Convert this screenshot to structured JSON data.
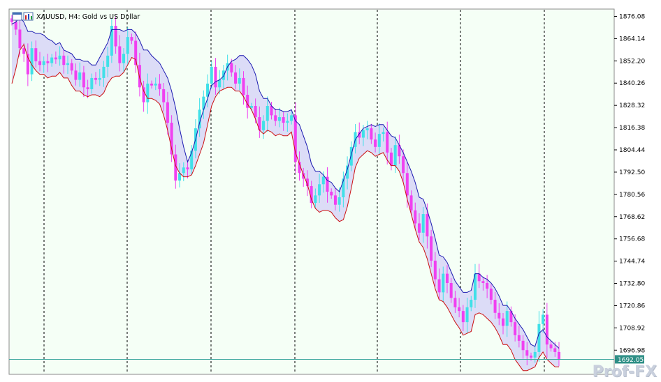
{
  "header": {
    "symbol_title": "XAUUSD, H4:  Gold vs US Dollar"
  },
  "watermark": "Prof-FX",
  "colors": {
    "background": "#f5fff6",
    "bull_candle": "#40e0e8",
    "bear_candle": "#f040f0",
    "upper_band": "#1a1ab0",
    "lower_band": "#cc1010",
    "band_fill": "#dcdcf7",
    "price_line": "#3aa69c",
    "price_label_bg": "#2e8f86"
  },
  "chart_data": {
    "type": "candlestick",
    "symbol": "XAUUSD",
    "timeframe": "H4",
    "ylim": [
      1684,
      1880
    ],
    "y_ticks": [
      "1876.08",
      "1864.14",
      "1852.20",
      "1840.26",
      "1828.32",
      "1816.38",
      "1804.44",
      "1792.50",
      "1780.56",
      "1768.62",
      "1756.68",
      "1744.74",
      "1732.80",
      "1720.86",
      "1708.92",
      "1696.98"
    ],
    "current_price": "1692.05",
    "grid": "vertical dashed period separators",
    "closes": [
      1873,
      1869,
      1859,
      1856,
      1845,
      1859,
      1852,
      1850,
      1852,
      1851,
      1854,
      1853,
      1855,
      1850,
      1851,
      1847,
      1842,
      1846,
      1838,
      1837,
      1843,
      1842,
      1843,
      1849,
      1855,
      1871,
      1860,
      1851,
      1856,
      1865,
      1863,
      1850,
      1838,
      1830,
      1840,
      1839,
      1840,
      1837,
      1830,
      1819,
      1802,
      1788,
      1792,
      1795,
      1794,
      1804,
      1816,
      1826,
      1833,
      1840,
      1849,
      1838,
      1842,
      1847,
      1851,
      1846,
      1840,
      1843,
      1834,
      1827,
      1828,
      1822,
      1815,
      1820,
      1828,
      1823,
      1820,
      1822,
      1819,
      1820,
      1823,
      1798,
      1792,
      1789,
      1785,
      1776,
      1780,
      1786,
      1790,
      1782,
      1780,
      1775,
      1779,
      1789,
      1796,
      1806,
      1814,
      1811,
      1815,
      1816,
      1810,
      1806,
      1813,
      1814,
      1803,
      1796,
      1807,
      1801,
      1792,
      1780,
      1772,
      1765,
      1760,
      1770,
      1758,
      1745,
      1735,
      1728,
      1738,
      1733,
      1725,
      1720,
      1718,
      1712,
      1720,
      1724,
      1738,
      1734,
      1733,
      1730,
      1724,
      1717,
      1714,
      1710,
      1718,
      1712,
      1705,
      1702,
      1697,
      1694,
      1693,
      1696,
      1711,
      1716,
      1700,
      1698,
      1696,
      1692
    ],
    "upper_band": [
      1872,
      1873,
      1876,
      1873,
      1868,
      1868,
      1867,
      1867,
      1866,
      1864,
      1863,
      1861,
      1862,
      1858,
      1857,
      1856,
      1853,
      1853,
      1852,
      1852,
      1850,
      1850,
      1854,
      1858,
      1862,
      1869,
      1869,
      1869,
      1868,
      1869,
      1869,
      1867,
      1863,
      1858,
      1858,
      1855,
      1853,
      1851,
      1847,
      1843,
      1836,
      1827,
      1816,
      1806,
      1798,
      1803,
      1810,
      1819,
      1826,
      1832,
      1839,
      1841,
      1842,
      1844,
      1849,
      1852,
      1853,
      1855,
      1855,
      1853,
      1850,
      1845,
      1836,
      1832,
      1832,
      1828,
      1826,
      1826,
      1825,
      1825,
      1826,
      1820,
      1818,
      1812,
      1806,
      1797,
      1793,
      1793,
      1791,
      1788,
      1787,
      1784,
      1782,
      1788,
      1794,
      1802,
      1810,
      1813,
      1816,
      1817,
      1818,
      1817,
      1818,
      1818,
      1815,
      1812,
      1811,
      1807,
      1803,
      1798,
      1793,
      1787,
      1779,
      1778,
      1772,
      1765,
      1757,
      1748,
      1747,
      1744,
      1739,
      1734,
      1731,
      1728,
      1728,
      1729,
      1738,
      1738,
      1736,
      1735,
      1733,
      1730,
      1726,
      1721,
      1721,
      1718,
      1714,
      1711,
      1708,
      1704,
      1700,
      1699,
      1706,
      1708,
      1704,
      1702,
      1700,
      1698
    ],
    "lower_band": [
      1840,
      1848,
      1858,
      1861,
      1854,
      1850,
      1847,
      1845,
      1845,
      1843,
      1844,
      1844,
      1846,
      1843,
      1843,
      1839,
      1836,
      1836,
      1834,
      1833,
      1834,
      1834,
      1833,
      1835,
      1840,
      1843,
      1844,
      1844,
      1846,
      1850,
      1854,
      1853,
      1843,
      1836,
      1832,
      1832,
      1831,
      1829,
      1823,
      1815,
      1805,
      1796,
      1792,
      1790,
      1790,
      1791,
      1796,
      1802,
      1808,
      1818,
      1828,
      1833,
      1836,
      1837,
      1838,
      1838,
      1836,
      1836,
      1833,
      1829,
      1826,
      1821,
      1815,
      1813,
      1815,
      1814,
      1812,
      1813,
      1812,
      1812,
      1814,
      1803,
      1797,
      1791,
      1786,
      1778,
      1773,
      1771,
      1772,
      1772,
      1771,
      1768,
      1766,
      1767,
      1774,
      1784,
      1795,
      1800,
      1802,
      1804,
      1803,
      1801,
      1802,
      1803,
      1799,
      1796,
      1796,
      1793,
      1787,
      1778,
      1770,
      1762,
      1755,
      1752,
      1746,
      1738,
      1730,
      1724,
      1723,
      1720,
      1716,
      1712,
      1709,
      1705,
      1706,
      1707,
      1716,
      1717,
      1716,
      1714,
      1712,
      1709,
      1705,
      1700,
      1700,
      1697,
      1692,
      1689,
      1686,
      1686,
      1687,
      1688,
      1693,
      1696,
      1692,
      1690,
      1688,
      1688
    ]
  }
}
